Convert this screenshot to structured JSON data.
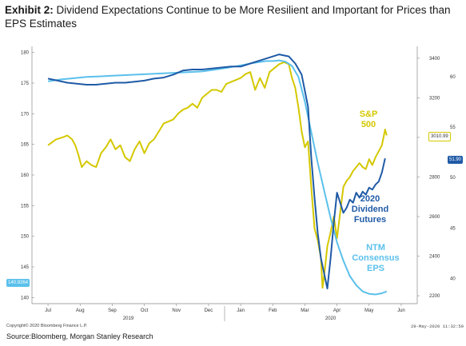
{
  "header": {
    "exhibit": "Exhibit 2:",
    "title": "Dividend Expectations Continue to be More Resilient and Important for Prices than EPS Estimates"
  },
  "footer": {
    "copyright": "Copyright© 2020 Bloomberg Finance L.P.",
    "timestamp": "29-May-2020 11:32:50",
    "source": "Source:Bloomberg, Morgan Stanley Research"
  },
  "value_tags": {
    "left": "140.9264",
    "right_spx": "3010.99",
    "right_div": "51.90"
  },
  "colors": {
    "spx": "#d4c800",
    "div": "#1f5aa6",
    "eps": "#5bc0eb",
    "axis": "#888888"
  },
  "chart_data": {
    "type": "line",
    "x_ticks": [
      "Jul",
      "Aug",
      "Sep",
      "Oct",
      "Nov",
      "Dec",
      "Jan",
      "Feb",
      "Mar",
      "Apr",
      "May",
      "Jun"
    ],
    "x_years": [
      "2019",
      "2020"
    ],
    "left_axis": {
      "ticks": [
        140,
        145,
        150,
        155,
        160,
        165,
        170,
        175,
        180
      ],
      "ylim": [
        139,
        181
      ]
    },
    "right_axis_spx": {
      "ticks": [
        2200,
        2400,
        2600,
        2800,
        3000,
        3200,
        3400
      ],
      "ylim": [
        2160,
        3460
      ]
    },
    "right_axis_div": {
      "ticks": [
        40,
        45,
        50,
        55,
        60
      ],
      "ylim": [
        37.5,
        63
      ]
    },
    "annotations": {
      "spx": [
        "S&P",
        "500"
      ],
      "div": [
        "2020",
        "Dividend",
        "Futures"
      ],
      "eps": [
        "NTM",
        "Consensus",
        "EPS"
      ]
    },
    "series": [
      {
        "name": "S&P 500",
        "axis": "spx",
        "x": [
          0.0,
          0.25,
          0.45,
          0.6,
          0.75,
          0.85,
          0.95,
          1.05,
          1.2,
          1.35,
          1.5,
          1.65,
          1.8,
          1.95,
          2.1,
          2.25,
          2.4,
          2.55,
          2.7,
          2.85,
          3.0,
          3.15,
          3.3,
          3.45,
          3.6,
          3.75,
          3.9,
          4.05,
          4.2,
          4.35,
          4.5,
          4.65,
          4.8,
          4.95,
          5.1,
          5.25,
          5.4,
          5.55,
          5.7,
          5.85,
          6.0,
          6.15,
          6.3,
          6.45,
          6.6,
          6.75,
          6.9,
          7.05,
          7.2,
          7.35,
          7.5,
          7.6,
          7.7,
          7.8,
          7.9,
          8.0,
          8.1,
          8.2,
          8.3,
          8.4,
          8.5,
          8.55,
          8.6,
          8.7,
          8.8,
          8.9,
          9.0,
          9.1,
          9.2,
          9.3,
          9.4,
          9.5,
          9.6,
          9.7,
          9.8,
          9.9,
          10.0,
          10.1,
          10.2,
          10.3,
          10.4,
          10.5,
          10.55
        ],
        "y": [
          2960,
          2990,
          3000,
          3010,
          2990,
          2960,
          2910,
          2850,
          2880,
          2860,
          2850,
          2920,
          2950,
          2990,
          2940,
          2960,
          2900,
          2880,
          2940,
          2980,
          2920,
          2970,
          2990,
          3030,
          3070,
          3080,
          3090,
          3120,
          3140,
          3150,
          3170,
          3150,
          3200,
          3220,
          3240,
          3240,
          3230,
          3270,
          3280,
          3290,
          3300,
          3320,
          3330,
          3240,
          3300,
          3250,
          3330,
          3350,
          3370,
          3380,
          3370,
          3300,
          3250,
          3150,
          3030,
          2950,
          2980,
          2750,
          2540,
          2480,
          2390,
          2240,
          2300,
          2450,
          2520,
          2600,
          2490,
          2620,
          2750,
          2780,
          2800,
          2830,
          2850,
          2870,
          2850,
          2840,
          2890,
          2860,
          2900,
          2930,
          2960,
          3040,
          3010
        ]
      },
      {
        "name": "2020 Dividend Futures",
        "axis": "div",
        "x": [
          0.0,
          0.3,
          0.6,
          0.9,
          1.2,
          1.5,
          1.8,
          2.1,
          2.4,
          2.7,
          3.0,
          3.3,
          3.6,
          3.9,
          4.2,
          4.5,
          4.8,
          5.1,
          5.4,
          5.7,
          6.0,
          6.3,
          6.6,
          6.9,
          7.2,
          7.5,
          7.7,
          7.9,
          8.1,
          8.2,
          8.3,
          8.4,
          8.5,
          8.6,
          8.7,
          8.8,
          8.9,
          9.0,
          9.1,
          9.2,
          9.3,
          9.4,
          9.5,
          9.6,
          9.7,
          9.8,
          9.9,
          10.0,
          10.1,
          10.2,
          10.3,
          10.4,
          10.5
        ],
        "y": [
          59.8,
          59.6,
          59.4,
          59.3,
          59.2,
          59.2,
          59.3,
          59.4,
          59.4,
          59.5,
          59.6,
          59.8,
          59.9,
          60.2,
          60.6,
          60.7,
          60.7,
          60.8,
          60.9,
          61.0,
          61.0,
          61.3,
          61.6,
          61.9,
          62.2,
          62.0,
          61.3,
          60.2,
          57.0,
          52.0,
          48.0,
          44.5,
          42.0,
          40.5,
          39.0,
          42.0,
          45.5,
          48.5,
          47.5,
          46.5,
          47.0,
          47.8,
          47.5,
          48.5,
          48.0,
          48.6,
          48.3,
          49.0,
          48.8,
          49.3,
          49.6,
          50.5,
          51.9
        ]
      },
      {
        "name": "NTM Consensus EPS",
        "axis": "left",
        "x": [
          0.0,
          0.4,
          0.8,
          1.2,
          1.6,
          2.0,
          2.4,
          2.8,
          3.2,
          3.6,
          4.0,
          4.4,
          4.8,
          5.2,
          5.6,
          6.0,
          6.4,
          6.8,
          7.0,
          7.2,
          7.4,
          7.6,
          7.8,
          8.0,
          8.2,
          8.4,
          8.6,
          8.8,
          9.0,
          9.2,
          9.4,
          9.6,
          9.8,
          10.0,
          10.2,
          10.4,
          10.55
        ],
        "y": [
          175.3,
          175.6,
          175.8,
          176.0,
          176.1,
          176.2,
          176.3,
          176.4,
          176.5,
          176.6,
          176.7,
          176.8,
          176.9,
          177.2,
          177.5,
          177.9,
          178.3,
          178.6,
          178.6,
          178.7,
          178.5,
          177.8,
          176.0,
          172.0,
          167.0,
          162.0,
          157.5,
          153.0,
          149.0,
          146.0,
          143.5,
          142.0,
          141.0,
          140.6,
          140.5,
          140.7,
          141.0
        ]
      }
    ]
  }
}
